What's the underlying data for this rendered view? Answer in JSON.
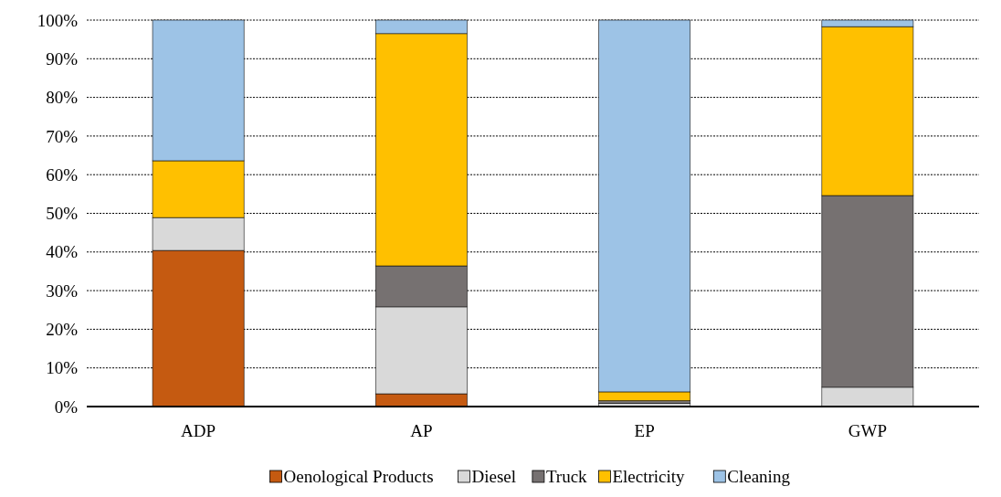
{
  "chart_data": {
    "type": "bar",
    "stacked": true,
    "categories": [
      "ADP",
      "AP",
      "EP",
      "GWP"
    ],
    "series": [
      {
        "name": "Oenological Products",
        "color": "#c55a11",
        "values": [
          40.4,
          3.3,
          0,
          0
        ]
      },
      {
        "name": "Diesel",
        "color": "#d9d9d9",
        "values": [
          8.5,
          22.5,
          0.8,
          5.0
        ]
      },
      {
        "name": "Truck",
        "color": "#767171",
        "values": [
          0,
          10.6,
          0.7,
          49.6
        ]
      },
      {
        "name": "Electricity",
        "color": "#ffc000",
        "values": [
          14.7,
          60.1,
          2.3,
          43.7
        ]
      },
      {
        "name": "Cleaning",
        "color": "#9dc3e6",
        "values": [
          36.4,
          3.5,
          96.2,
          1.7
        ]
      }
    ],
    "ylim": [
      0,
      100
    ],
    "yticks": [
      {
        "value": 0,
        "label": "0%"
      },
      {
        "value": 10,
        "label": "10%"
      },
      {
        "value": 20,
        "label": "20%"
      },
      {
        "value": 30,
        "label": "30%"
      },
      {
        "value": 40,
        "label": "40%"
      },
      {
        "value": 50,
        "label": "50%"
      },
      {
        "value": 60,
        "label": "60%"
      },
      {
        "value": 70,
        "label": "70%"
      },
      {
        "value": 80,
        "label": "80%"
      },
      {
        "value": 90,
        "label": "90%"
      },
      {
        "value": 100,
        "label": "100%"
      }
    ],
    "grid": "y",
    "legend": "bottom"
  }
}
